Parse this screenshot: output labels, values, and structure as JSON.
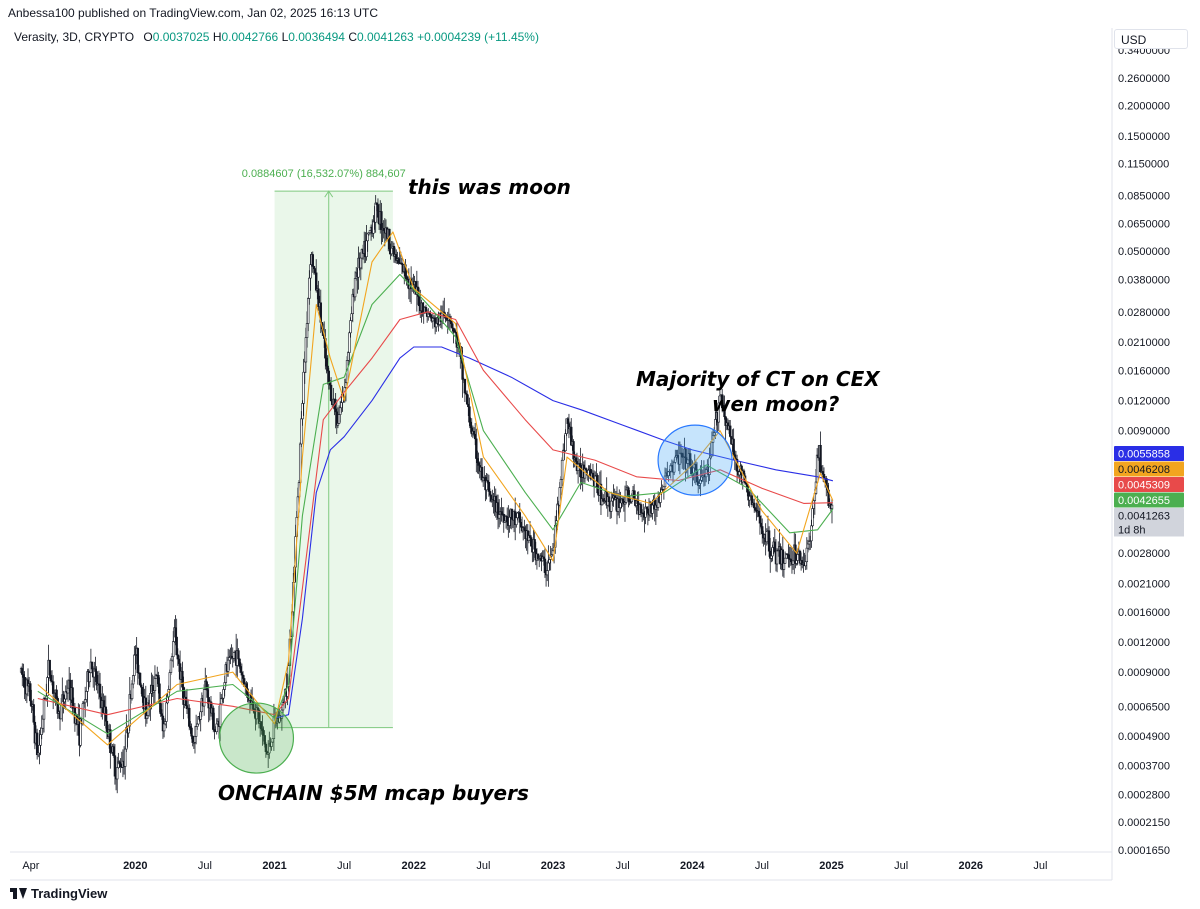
{
  "header": {
    "published": "Anbessa100 published on TradingView.com, Jan 02, 2025 16:13 UTC",
    "symbol": "Verasity, 3D, CRYPTO",
    "open_label": "O",
    "open": "0.0037025",
    "high_label": "H",
    "high": "0.0042766",
    "low_label": "L",
    "low": "0.0036494",
    "close_label": "C",
    "close": "0.0041263",
    "change": "+0.0004239 (+11.45%)"
  },
  "currency_button": "USD",
  "footer": {
    "brand": "TradingView"
  },
  "colors": {
    "ema_blue": "#2a2ee6",
    "ema_red": "#e84a4a",
    "ema_orange": "#f2a51f",
    "ema_green": "#4caf50",
    "measure_fill": "#e3f4e3",
    "measure_line": "#7fc97f",
    "candle": "#131722"
  },
  "chart_data": {
    "type": "line",
    "yscale": "log",
    "ylim": [
      0.000165,
      0.34
    ],
    "y_ticks": [
      "0.3400000",
      "0.2600000",
      "0.2000000",
      "0.1500000",
      "0.1150000",
      "0.0850000",
      "0.0650000",
      "0.0500000",
      "0.0380000",
      "0.0280000",
      "0.0210000",
      "0.0160000",
      "0.0120000",
      "0.0090000",
      "0.0028000",
      "0.0021000",
      "0.0016000",
      "0.0012000",
      "0.0009000",
      "0.0006500",
      "0.0004900",
      "0.0003700",
      "0.0002800",
      "0.0002150",
      "0.0001650"
    ],
    "y_tick_values": [
      0.34,
      0.26,
      0.2,
      0.15,
      0.115,
      0.085,
      0.065,
      0.05,
      0.038,
      0.028,
      0.021,
      0.016,
      0.012,
      0.009,
      0.0028,
      0.0021,
      0.0016,
      0.0012,
      0.0009,
      0.00065,
      0.00049,
      0.00037,
      0.00028,
      0.000215,
      0.000165
    ],
    "x_ticks": [
      {
        "label": "Apr",
        "t": 2019.25,
        "year": false
      },
      {
        "label": "2020",
        "t": 2020.0,
        "year": true
      },
      {
        "label": "Jul",
        "t": 2020.5,
        "year": false
      },
      {
        "label": "2021",
        "t": 2021.0,
        "year": true
      },
      {
        "label": "Jul",
        "t": 2021.5,
        "year": false
      },
      {
        "label": "2022",
        "t": 2022.0,
        "year": true
      },
      {
        "label": "Jul",
        "t": 2022.5,
        "year": false
      },
      {
        "label": "2023",
        "t": 2023.0,
        "year": true
      },
      {
        "label": "Jul",
        "t": 2023.5,
        "year": false
      },
      {
        "label": "2024",
        "t": 2024.0,
        "year": true
      },
      {
        "label": "Jul",
        "t": 2024.5,
        "year": false
      },
      {
        "label": "2025",
        "t": 2025.0,
        "year": true
      },
      {
        "label": "Jul",
        "t": 2025.5,
        "year": false
      },
      {
        "label": "2026",
        "t": 2026.0,
        "year": true
      },
      {
        "label": "Jul",
        "t": 2026.5,
        "year": false
      }
    ],
    "xlim": [
      2019.1,
      2027.0
    ],
    "price_path": [
      [
        2019.18,
        0.0009
      ],
      [
        2019.25,
        0.0007
      ],
      [
        2019.3,
        0.0004
      ],
      [
        2019.38,
        0.00095
      ],
      [
        2019.45,
        0.0006
      ],
      [
        2019.52,
        0.0008
      ],
      [
        2019.6,
        0.0005
      ],
      [
        2019.68,
        0.001
      ],
      [
        2019.78,
        0.0006
      ],
      [
        2019.86,
        0.00035
      ],
      [
        2019.92,
        0.0004
      ],
      [
        2020.0,
        0.0011
      ],
      [
        2020.08,
        0.0006
      ],
      [
        2020.15,
        0.0009
      ],
      [
        2020.2,
        0.0005
      ],
      [
        2020.28,
        0.0013
      ],
      [
        2020.35,
        0.0007
      ],
      [
        2020.42,
        0.00045
      ],
      [
        2020.5,
        0.0008
      ],
      [
        2020.58,
        0.0005
      ],
      [
        2020.65,
        0.0009
      ],
      [
        2020.72,
        0.0011
      ],
      [
        2020.8,
        0.00075
      ],
      [
        2020.88,
        0.0006
      ],
      [
        2020.95,
        0.0004
      ],
      [
        2021.0,
        0.00055
      ],
      [
        2021.05,
        0.0006
      ],
      [
        2021.1,
        0.0009
      ],
      [
        2021.15,
        0.003
      ],
      [
        2021.2,
        0.012
      ],
      [
        2021.26,
        0.05
      ],
      [
        2021.32,
        0.03
      ],
      [
        2021.38,
        0.015
      ],
      [
        2021.45,
        0.01
      ],
      [
        2021.5,
        0.013
      ],
      [
        2021.58,
        0.04
      ],
      [
        2021.65,
        0.05
      ],
      [
        2021.73,
        0.075
      ],
      [
        2021.8,
        0.06
      ],
      [
        2021.88,
        0.045
      ],
      [
        2021.95,
        0.04
      ],
      [
        2022.05,
        0.03
      ],
      [
        2022.15,
        0.025
      ],
      [
        2022.25,
        0.028
      ],
      [
        2022.32,
        0.02
      ],
      [
        2022.4,
        0.01
      ],
      [
        2022.48,
        0.006
      ],
      [
        2022.56,
        0.0045
      ],
      [
        2022.65,
        0.004
      ],
      [
        2022.75,
        0.0038
      ],
      [
        2022.85,
        0.003
      ],
      [
        2022.95,
        0.0024
      ],
      [
        2023.0,
        0.0028
      ],
      [
        2023.05,
        0.0055
      ],
      [
        2023.1,
        0.01
      ],
      [
        2023.18,
        0.006
      ],
      [
        2023.25,
        0.0065
      ],
      [
        2023.35,
        0.0048
      ],
      [
        2023.45,
        0.0045
      ],
      [
        2023.55,
        0.0048
      ],
      [
        2023.65,
        0.0042
      ],
      [
        2023.75,
        0.0045
      ],
      [
        2023.82,
        0.006
      ],
      [
        2023.9,
        0.007
      ],
      [
        2023.98,
        0.0065
      ],
      [
        2024.05,
        0.0055
      ],
      [
        2024.12,
        0.0062
      ],
      [
        2024.2,
        0.013
      ],
      [
        2024.26,
        0.009
      ],
      [
        2024.32,
        0.0065
      ],
      [
        2024.4,
        0.005
      ],
      [
        2024.48,
        0.0038
      ],
      [
        2024.56,
        0.003
      ],
      [
        2024.64,
        0.0026
      ],
      [
        2024.72,
        0.0028
      ],
      [
        2024.8,
        0.0026
      ],
      [
        2024.85,
        0.0032
      ],
      [
        2024.9,
        0.0075
      ],
      [
        2024.94,
        0.006
      ],
      [
        2024.98,
        0.0045
      ],
      [
        2025.01,
        0.0041
      ]
    ],
    "series": [
      {
        "color": "#2a2ee6",
        "values": [
          [
            2021.0,
            0.00058
          ],
          [
            2021.1,
            0.0006
          ],
          [
            2021.2,
            0.0015
          ],
          [
            2021.3,
            0.005
          ],
          [
            2021.4,
            0.0075
          ],
          [
            2021.5,
            0.0085
          ],
          [
            2021.7,
            0.012
          ],
          [
            2021.9,
            0.018
          ],
          [
            2022.0,
            0.02
          ],
          [
            2022.2,
            0.02
          ],
          [
            2022.4,
            0.018
          ],
          [
            2022.7,
            0.015
          ],
          [
            2023.0,
            0.012
          ],
          [
            2023.2,
            0.011
          ],
          [
            2023.5,
            0.0095
          ],
          [
            2023.8,
            0.0082
          ],
          [
            2024.0,
            0.0075
          ],
          [
            2024.3,
            0.0068
          ],
          [
            2024.6,
            0.0062
          ],
          [
            2024.9,
            0.0058
          ],
          [
            2025.01,
            0.0055858
          ]
        ]
      },
      {
        "color": "#e84a4a",
        "values": [
          [
            2019.3,
            0.0007
          ],
          [
            2019.8,
            0.0006
          ],
          [
            2020.3,
            0.0007
          ],
          [
            2020.7,
            0.00065
          ],
          [
            2021.0,
            0.0006
          ],
          [
            2021.1,
            0.0007
          ],
          [
            2021.2,
            0.002
          ],
          [
            2021.35,
            0.01
          ],
          [
            2021.5,
            0.013
          ],
          [
            2021.7,
            0.018
          ],
          [
            2021.9,
            0.026
          ],
          [
            2022.1,
            0.028
          ],
          [
            2022.3,
            0.026
          ],
          [
            2022.5,
            0.016
          ],
          [
            2022.8,
            0.01
          ],
          [
            2023.0,
            0.0075
          ],
          [
            2023.3,
            0.0068
          ],
          [
            2023.6,
            0.0058
          ],
          [
            2023.9,
            0.0056
          ],
          [
            2024.2,
            0.0062
          ],
          [
            2024.5,
            0.0052
          ],
          [
            2024.8,
            0.0045
          ],
          [
            2025.01,
            0.0045309
          ]
        ]
      },
      {
        "color": "#4caf50",
        "values": [
          [
            2019.3,
            0.00075
          ],
          [
            2019.8,
            0.0005
          ],
          [
            2020.3,
            0.00075
          ],
          [
            2020.7,
            0.0008
          ],
          [
            2021.0,
            0.00058
          ],
          [
            2021.1,
            0.0008
          ],
          [
            2021.2,
            0.004
          ],
          [
            2021.35,
            0.014
          ],
          [
            2021.5,
            0.015
          ],
          [
            2021.7,
            0.03
          ],
          [
            2021.9,
            0.04
          ],
          [
            2022.1,
            0.03
          ],
          [
            2022.3,
            0.022
          ],
          [
            2022.5,
            0.009
          ],
          [
            2022.8,
            0.005
          ],
          [
            2023.0,
            0.0035
          ],
          [
            2023.2,
            0.0055
          ],
          [
            2023.5,
            0.0048
          ],
          [
            2023.8,
            0.005
          ],
          [
            2024.1,
            0.0065
          ],
          [
            2024.4,
            0.0052
          ],
          [
            2024.7,
            0.0034
          ],
          [
            2024.9,
            0.0035
          ],
          [
            2025.01,
            0.0042655
          ]
        ]
      },
      {
        "color": "#f2a51f",
        "values": [
          [
            2019.3,
            0.0008
          ],
          [
            2019.8,
            0.00045
          ],
          [
            2020.3,
            0.0008
          ],
          [
            2020.7,
            0.0009
          ],
          [
            2021.0,
            0.00055
          ],
          [
            2021.1,
            0.001
          ],
          [
            2021.2,
            0.007
          ],
          [
            2021.3,
            0.03
          ],
          [
            2021.4,
            0.018
          ],
          [
            2021.5,
            0.012
          ],
          [
            2021.7,
            0.045
          ],
          [
            2021.85,
            0.06
          ],
          [
            2022.0,
            0.035
          ],
          [
            2022.3,
            0.025
          ],
          [
            2022.5,
            0.007
          ],
          [
            2022.8,
            0.004
          ],
          [
            2023.0,
            0.0026
          ],
          [
            2023.1,
            0.007
          ],
          [
            2023.4,
            0.005
          ],
          [
            2023.7,
            0.0045
          ],
          [
            2024.0,
            0.0065
          ],
          [
            2024.2,
            0.009
          ],
          [
            2024.5,
            0.0042
          ],
          [
            2024.75,
            0.0028
          ],
          [
            2024.92,
            0.006
          ],
          [
            2025.01,
            0.0046208
          ]
        ]
      }
    ],
    "price_labels": [
      {
        "text": "0.0055858",
        "color": "#2a2ee6",
        "value": 0.0055858,
        "text_color": "#ffffff"
      },
      {
        "text": "0.0046208",
        "color": "#f2a51f",
        "value": 0.0046208,
        "text_color": "#131722"
      },
      {
        "text": "0.0045309",
        "color": "#e84a4a",
        "value": 0.0045309,
        "text_color": "#ffffff"
      },
      {
        "text": "0.0042655",
        "color": "#4caf50",
        "value": 0.0042655,
        "text_color": "#ffffff"
      },
      {
        "text": "0.0041263",
        "color": "#d1d4dc",
        "value": 0.0041263,
        "text_color": "#131722"
      }
    ],
    "countdown": "1d 8h",
    "measure": {
      "text": "0.0884607 (16,532.07%) 884,607",
      "t_start": 2021.0,
      "t_end": 2021.85,
      "low": 0.00053,
      "high": 0.0885
    },
    "annotations": [
      {
        "text": "this was moon"
      },
      {
        "text": "Majority of CT on CEX"
      },
      {
        "text": "wen moon?"
      },
      {
        "text": "ONCHAIN $5M mcap buyers"
      }
    ],
    "circles": [
      {
        "color": "green",
        "t": 2020.87,
        "value": 0.00048
      },
      {
        "color": "blue",
        "t": 2024.02,
        "value": 0.0068
      }
    ]
  }
}
